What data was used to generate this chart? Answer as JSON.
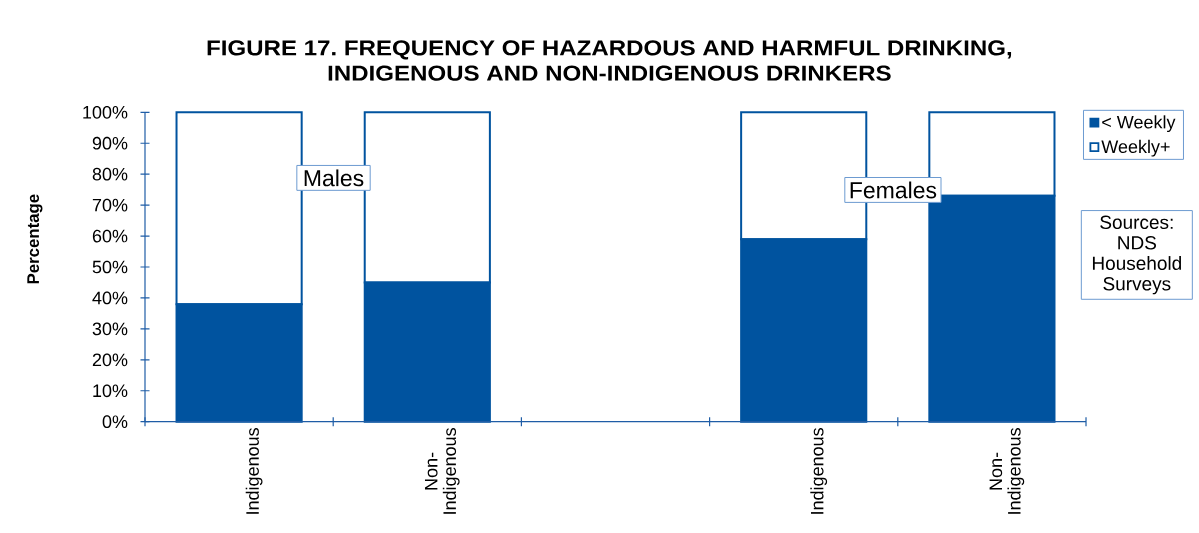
{
  "chart_data": {
    "type": "bar",
    "stacked": true,
    "title": "FIGURE 17. FREQUENCY OF HAZARDOUS AND HARMFUL DRINKING, INDIGENOUS AND NON-INDIGENOUS DRINKERS",
    "ylabel": "Percentage",
    "categories": [
      "Indigenous",
      "Non-Indigenous",
      null,
      "Indigenous",
      "Non-Indigenous"
    ],
    "series": [
      {
        "name": "< Weekly",
        "color": "#00539f",
        "values": [
          38,
          45,
          null,
          59,
          73
        ]
      },
      {
        "name": "Weekly+",
        "color": "#ffffff",
        "values": [
          62,
          55,
          null,
          41,
          27
        ]
      }
    ],
    "ylim": [
      0,
      100
    ],
    "yticks": [
      {
        "value": 0,
        "label": "0%"
      },
      {
        "value": 10,
        "label": "10%"
      },
      {
        "value": 20,
        "label": "20%"
      },
      {
        "value": 30,
        "label": "30%"
      },
      {
        "value": 40,
        "label": "40%"
      },
      {
        "value": 50,
        "label": "50%"
      },
      {
        "value": 60,
        "label": "60%"
      },
      {
        "value": 70,
        "label": "70%"
      },
      {
        "value": 80,
        "label": "80%"
      },
      {
        "value": 90,
        "label": "90%"
      },
      {
        "value": 100,
        "label": "100%"
      }
    ],
    "legend": "top right",
    "annotations": [
      "Males",
      "Females",
      "Sources: NDS Household Surveys"
    ]
  }
}
